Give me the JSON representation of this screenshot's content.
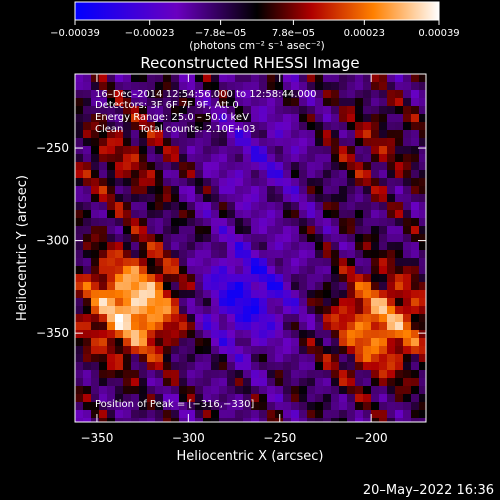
{
  "chart_data": {
    "type": "heatmap",
    "title": "Reconstructed RHESSI Image",
    "xlabel": "Heliocentric X (arcsec)",
    "ylabel": "Heliocentric Y (arcsec)",
    "xlim": [
      -362,
      -170
    ],
    "ylim": [
      -398,
      -210
    ],
    "x_ticks": [
      -350,
      -300,
      -250,
      -200
    ],
    "x_tick_labels": [
      "−350",
      "−300",
      "−250",
      "−200"
    ],
    "y_ticks": [
      -250,
      -300,
      -350
    ],
    "y_tick_labels": [
      "−250",
      "−300",
      "−350"
    ],
    "annotations": [
      "16–Dec–2014 12:54:56.000 to 12:58:44.000",
      "Detectors: 3F 6F 7F 9F, Att 0",
      "Energy Range: 25.0 – 50.0 keV",
      "Clean     Total counts: 2.10E+03"
    ],
    "peak_label": "Position of Peak = [−316,−330]",
    "peak_position": [
      -316,
      -330
    ],
    "colorbar": {
      "range": [
        -0.00039,
        0.00039
      ],
      "tick_labels": [
        "−0.00039",
        "−0.00023",
        "−7.8e−05",
        "7.8e−05",
        "0.00023",
        "0.00039"
      ],
      "unit_label": "(photons cm⁻² s⁻¹ asec⁻²)",
      "colors": [
        "#0000ff",
        "#a0009f",
        "#000000",
        "#b00000",
        "#ff8000",
        "#ffffff"
      ]
    },
    "emission_sources": [
      {
        "x": -330,
        "y": -335,
        "intensity": 0.00039
      },
      {
        "x": -195,
        "y": -345,
        "intensity": 0.0003
      },
      {
        "x": -335,
        "y": -255,
        "intensity": 0.00012
      },
      {
        "x": -200,
        "y": -250,
        "intensity": 0.0001
      },
      {
        "x": -270,
        "y": -330,
        "intensity": -0.00025
      },
      {
        "x": -260,
        "y": -255,
        "intensity": -0.00012
      }
    ]
  },
  "footer": {
    "timestamp": "20–May–2022 16:36"
  }
}
